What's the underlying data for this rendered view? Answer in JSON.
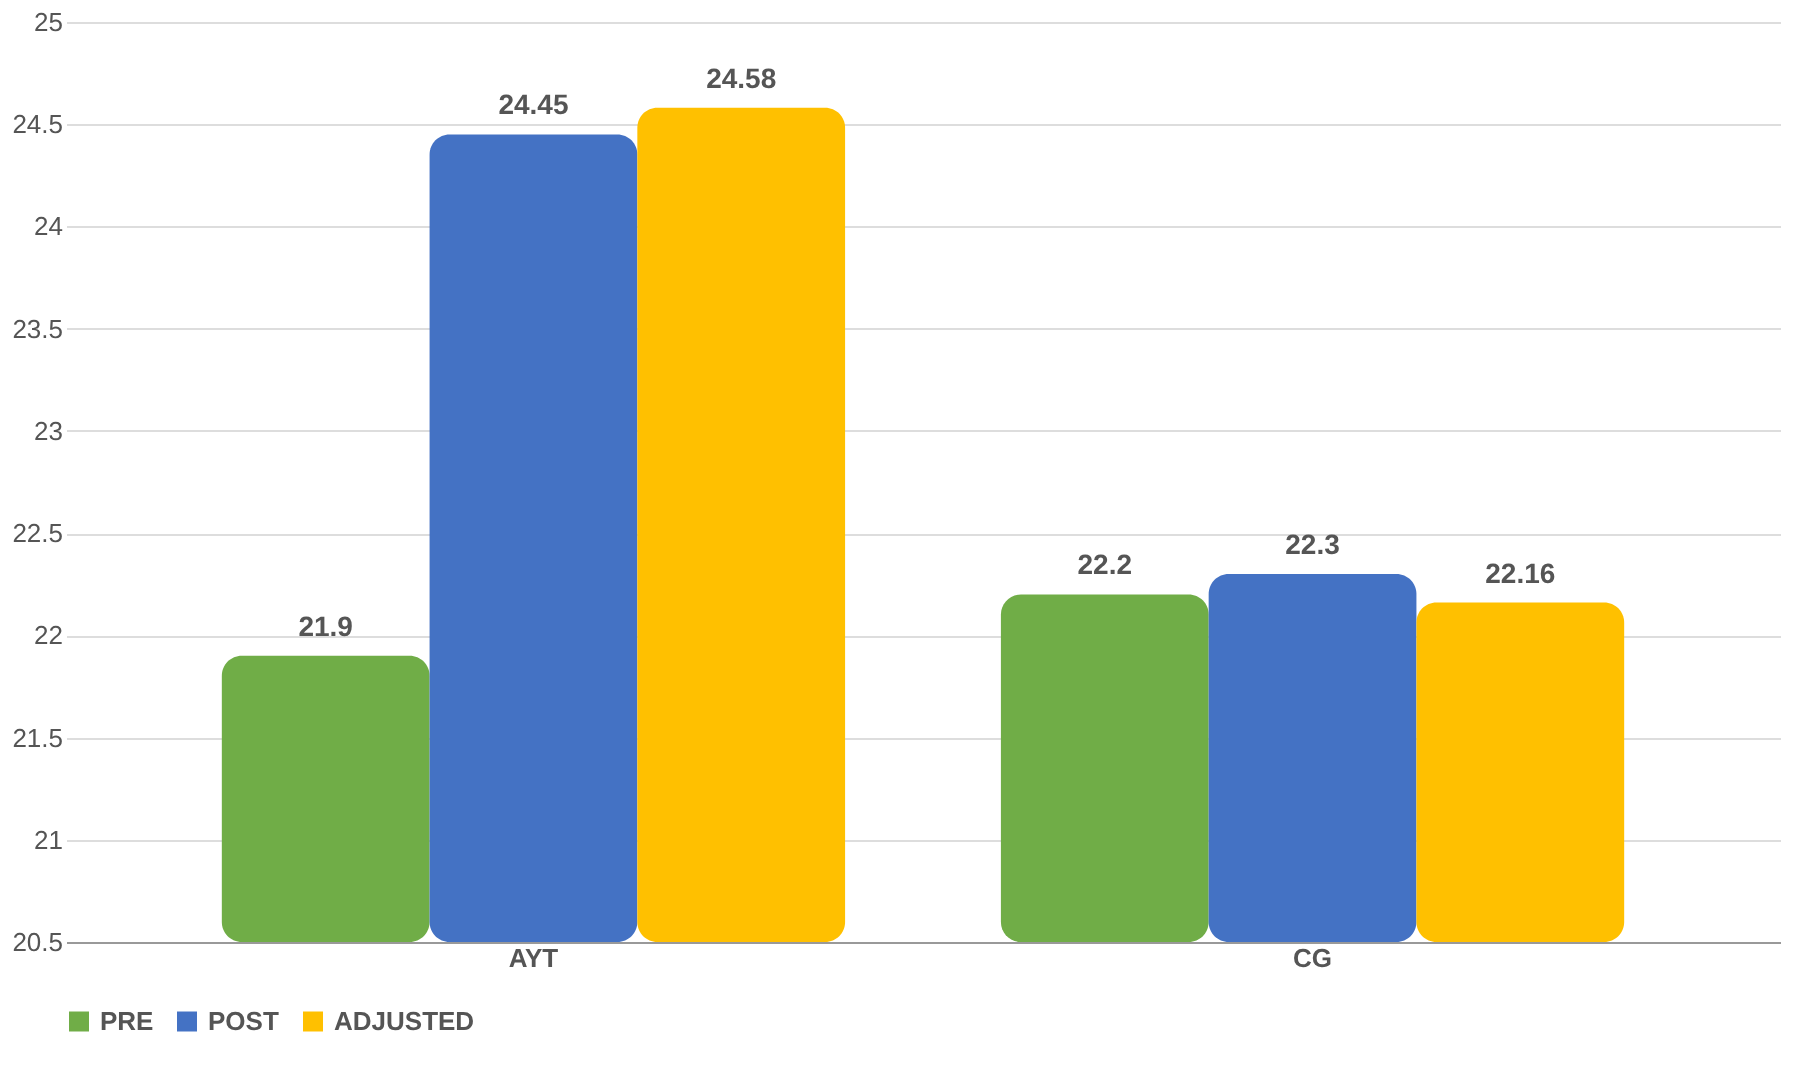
{
  "chart_data": {
    "type": "bar",
    "categories": [
      "AYT",
      "CG"
    ],
    "series": [
      {
        "name": "PRE",
        "color": "#70ad47",
        "values": [
          21.9,
          22.2
        ]
      },
      {
        "name": "POST",
        "color": "#4472c4",
        "values": [
          24.45,
          22.3
        ]
      },
      {
        "name": "ADJUSTED",
        "color": "#ffc000",
        "values": [
          24.58,
          22.16
        ]
      }
    ],
    "ylim": [
      20.5,
      25
    ],
    "yticks": [
      20.5,
      21,
      21.5,
      22,
      22.5,
      23,
      23.5,
      24,
      24.5,
      25
    ],
    "grid": "y",
    "legend": "bottom",
    "data_labels": true
  }
}
